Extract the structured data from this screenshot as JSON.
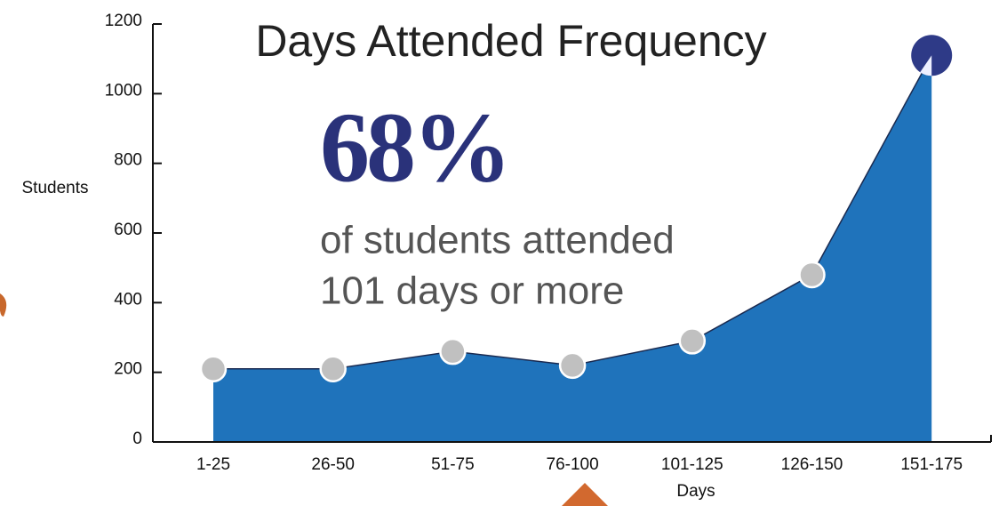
{
  "chart_data": {
    "type": "area",
    "title": "Days Attended Frequency",
    "annotation_value": "68%",
    "annotation_text": [
      "of students attended",
      "101 days or more"
    ],
    "x_label": "Days",
    "y_label": "Students",
    "categories": [
      "1-25",
      "26-50",
      "51-75",
      "76-100",
      "101-125",
      "126-150",
      "151-175"
    ],
    "values": [
      210,
      210,
      260,
      220,
      290,
      480,
      1110
    ],
    "color": "#1f73bb",
    "marker_color": "#c0c0c0",
    "highlight_color": "#2e3a87",
    "ylim": [
      0,
      1200
    ],
    "yticks": [
      0,
      200,
      400,
      600,
      800,
      1000,
      1200
    ],
    "grid": false
  }
}
